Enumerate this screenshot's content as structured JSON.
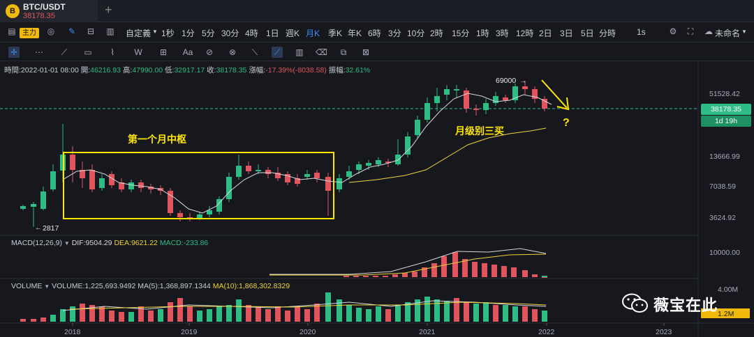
{
  "tab": {
    "symbol": "BTC/USDT",
    "price": "38178.35",
    "logo": "B"
  },
  "toolbar": {
    "main_badge": "主力",
    "custom": "自定義",
    "intervals": [
      "1秒",
      "1分",
      "5分",
      "30分",
      "4時",
      "1日",
      "週K",
      "月K",
      "季K",
      "年K",
      "6時",
      "3分",
      "10分",
      "2時",
      "15分",
      "1時",
      "3時",
      "12時",
      "2日",
      "3日",
      "5日",
      "分時"
    ],
    "active_interval": "月K",
    "right_interval": "1s",
    "layout_name": "未命名"
  },
  "info": {
    "time_label": "時間:",
    "time": "2022-01-01 08:00",
    "open_label": "開:",
    "open": "46216.93",
    "high_label": "高:",
    "high": "47990.00",
    "low_label": "低:",
    "low": "32917.17",
    "close_label": "收:",
    "close": "38178.35",
    "change_label": "漲幅:",
    "change": "-17.39%(-8038.58)",
    "amp_label": "振幅:",
    "amp": "32.61%"
  },
  "price_axis": [
    "51528.42",
    "13666.99",
    "7038.59",
    "3624.92"
  ],
  "current_price": "38178.35",
  "countdown": "1d 19h",
  "annotations": {
    "box_label": "第一个月中枢",
    "third_buy": "月级别三买",
    "question": "?",
    "high_mark": "69000",
    "low_mark": "2817"
  },
  "macd": {
    "label": "MACD(12,26,9)",
    "dif": "DIF:9504.29",
    "dea": "DEA:9621.22",
    "macd": "MACD:-233.86",
    "axis": "10000.00"
  },
  "volume": {
    "label": "VOLUME",
    "volume": "VOLUME:1,225,693.9492",
    "ma5": "MA(5):1,368,897.1344",
    "ma10": "MA(10):1,868,302.8329",
    "axis_top": "4.00M",
    "axis_current": "1.2M"
  },
  "time_axis": [
    "2018",
    "2019",
    "2020",
    "2021",
    "2022",
    "2023"
  ],
  "watermark": "薇宝在此",
  "colors": {
    "up": "#2ebd85",
    "down": "#e0555e",
    "accent": "#f0b90b",
    "annotation": "#ffe600"
  }
}
